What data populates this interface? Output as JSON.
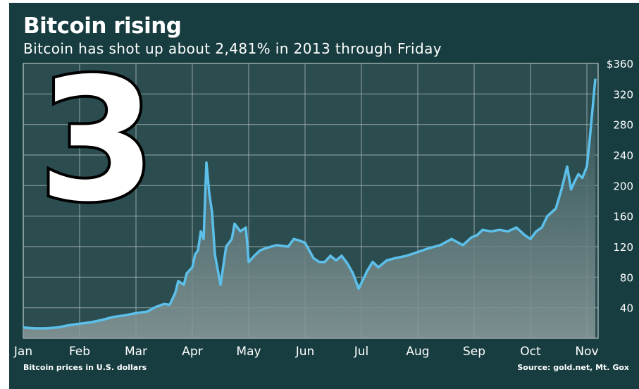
{
  "header": {
    "title": "Bitcoin rising",
    "subtitle": "Bitcoin has shot up about 2,481% in 2013 through Friday"
  },
  "footer": {
    "note": "Bitcoin prices in U.S. dollars",
    "source": "Source: gold.net, Mt. Gox"
  },
  "badge": {
    "text": "3"
  },
  "colors": {
    "background": "#173d40",
    "plot_top": "#2a4f52",
    "plot_bottom": "#8a9a9a",
    "line": "#5cc0ea",
    "grid": "#a9b6b6",
    "text": "#ffffff"
  },
  "chart_data": {
    "type": "area",
    "title": "Bitcoin rising",
    "subtitle": "Bitcoin has shot up about 2,481% in 2013 through Friday",
    "xlabel": "",
    "ylabel": "",
    "x_ticks": [
      "Jan",
      "Feb",
      "Mar",
      "Apr",
      "May",
      "Jun",
      "Jul",
      "Aug",
      "Sep",
      "Oct",
      "Nov"
    ],
    "y_ticks": [
      "40",
      "80",
      "120",
      "160",
      "200",
      "240",
      "280",
      "320",
      "$360"
    ],
    "ylim": [
      0,
      360
    ],
    "xlim": [
      0,
      10.2
    ],
    "grid": true,
    "y_axis_side": "right",
    "series": [
      {
        "x": [
          0,
          0.2,
          0.4,
          0.6,
          0.8,
          1.0,
          1.2,
          1.4,
          1.6,
          1.8,
          2.0,
          2.2,
          2.35,
          2.5,
          2.6,
          2.7,
          2.75,
          2.85,
          2.9,
          3.0,
          3.05,
          3.1,
          3.15,
          3.2,
          3.25,
          3.3,
          3.35,
          3.4,
          3.5,
          3.6,
          3.7,
          3.75,
          3.85,
          3.95,
          4.0,
          4.1,
          4.2,
          4.3,
          4.5,
          4.7,
          4.8,
          4.9,
          5.0,
          5.15,
          5.25,
          5.35,
          5.45,
          5.55,
          5.65,
          5.75,
          5.85,
          5.95,
          6.05,
          6.1,
          6.2,
          6.3,
          6.45,
          6.6,
          6.8,
          7.0,
          7.2,
          7.4,
          7.6,
          7.8,
          7.95,
          8.05,
          8.15,
          8.3,
          8.45,
          8.6,
          8.75,
          8.9,
          9.0,
          9.1,
          9.2,
          9.3,
          9.45,
          9.55,
          9.65,
          9.72,
          9.78,
          9.85,
          9.92,
          10.0,
          10.05,
          10.1,
          10.15
        ],
        "y": [
          14,
          13,
          13,
          14,
          17,
          19,
          21,
          24,
          28,
          30,
          33,
          35,
          41,
          45,
          44,
          60,
          75,
          70,
          85,
          93,
          110,
          115,
          140,
          130,
          230,
          190,
          165,
          110,
          70,
          120,
          130,
          150,
          140,
          145,
          100,
          108,
          115,
          118,
          122,
          120,
          130,
          128,
          125,
          105,
          100,
          100,
          108,
          102,
          108,
          98,
          85,
          65,
          80,
          88,
          100,
          93,
          102,
          105,
          108,
          113,
          118,
          122,
          130,
          122,
          132,
          135,
          142,
          140,
          142,
          140,
          145,
          135,
          130,
          140,
          145,
          160,
          170,
          195,
          225,
          195,
          205,
          215,
          210,
          225,
          260,
          300,
          340
        ]
      }
    ]
  }
}
